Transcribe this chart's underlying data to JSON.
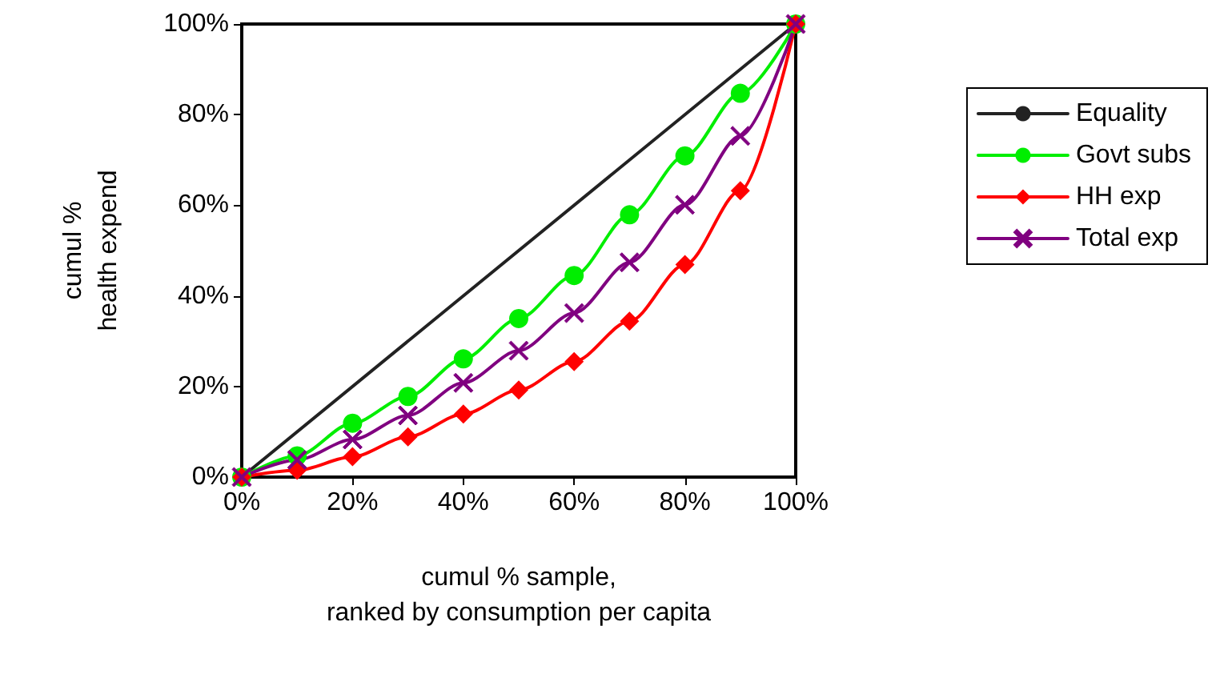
{
  "chart_data": {
    "type": "line",
    "xlabel": "cumul % sample,\nranked by consumption per capita",
    "ylabel": "cumul %\nhealth expend",
    "x": [
      0,
      10,
      20,
      30,
      40,
      50,
      60,
      70,
      80,
      90,
      100
    ],
    "series": [
      {
        "name": "Equality",
        "color": "#222222",
        "marker": "none",
        "x": [
          0,
          100
        ],
        "values": [
          0,
          100
        ]
      },
      {
        "name": "Govt subs",
        "color": "#00ee00",
        "marker": "circle",
        "values": [
          0,
          4.7,
          11.9,
          17.8,
          26.1,
          35.0,
          44.5,
          57.9,
          70.9,
          84.7,
          100
        ]
      },
      {
        "name": "HH exp",
        "color": "#ff0000",
        "marker": "diamond",
        "values": [
          0,
          1.5,
          4.5,
          8.9,
          13.9,
          19.2,
          25.5,
          34.4,
          46.9,
          63.2,
          100
        ]
      },
      {
        "name": "Total exp",
        "color": "#800080",
        "marker": "cross",
        "values": [
          0,
          3.8,
          8.3,
          13.6,
          20.8,
          27.9,
          36.2,
          47.4,
          60.1,
          75.3,
          100
        ]
      }
    ],
    "xlim": [
      0,
      100
    ],
    "xticks": [
      {
        "value": 0,
        "label": "0%"
      },
      {
        "value": 20,
        "label": "20%"
      },
      {
        "value": 40,
        "label": "40%"
      },
      {
        "value": 60,
        "label": "60%"
      },
      {
        "value": 80,
        "label": "80%"
      },
      {
        "value": 100,
        "label": "100%"
      }
    ],
    "ylim": [
      0,
      100
    ],
    "yticks": [
      {
        "value": 0,
        "label": "0%"
      },
      {
        "value": 20,
        "label": "20%"
      },
      {
        "value": 40,
        "label": "40%"
      },
      {
        "value": 60,
        "label": "60%"
      },
      {
        "value": 80,
        "label": "80%"
      },
      {
        "value": 100,
        "label": "100%"
      }
    ],
    "grid": false,
    "legend": "right",
    "line_style": "solid"
  }
}
